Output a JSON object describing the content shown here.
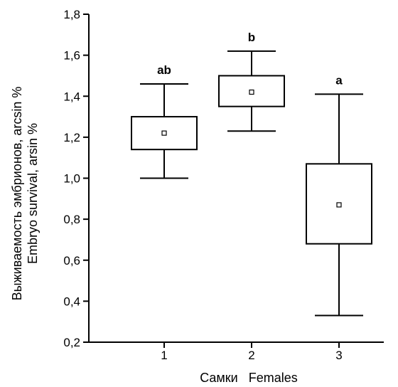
{
  "chart_data": {
    "type": "box",
    "xlabel": "Самки   Females",
    "ylabel_lines": [
      "Выживаемость эмбрионов, arcsin %",
      "Embryo survival, arsin %"
    ],
    "ylim": [
      0.2,
      1.8
    ],
    "yticks": [
      {
        "value": 0.2,
        "label": "0,2"
      },
      {
        "value": 0.4,
        "label": "0,4"
      },
      {
        "value": 0.6,
        "label": "0,6"
      },
      {
        "value": 0.8,
        "label": "0,8"
      },
      {
        "value": 1.0,
        "label": "1,0"
      },
      {
        "value": 1.2,
        "label": "1,2"
      },
      {
        "value": 1.4,
        "label": "1,4"
      },
      {
        "value": 1.6,
        "label": "1,6"
      },
      {
        "value": 1.8,
        "label": "1,8"
      }
    ],
    "categories": [
      "1",
      "2",
      "3"
    ],
    "boxes": [
      {
        "category": "1",
        "min": 1.0,
        "q1": 1.14,
        "median": 1.22,
        "q3": 1.3,
        "max": 1.46,
        "letter": "ab"
      },
      {
        "category": "2",
        "min": 1.23,
        "q1": 1.35,
        "median": 1.42,
        "q3": 1.5,
        "max": 1.62,
        "letter": "b"
      },
      {
        "category": "3",
        "min": 0.33,
        "q1": 0.68,
        "median": 0.87,
        "q3": 1.07,
        "max": 1.41,
        "letter": "a"
      }
    ]
  }
}
